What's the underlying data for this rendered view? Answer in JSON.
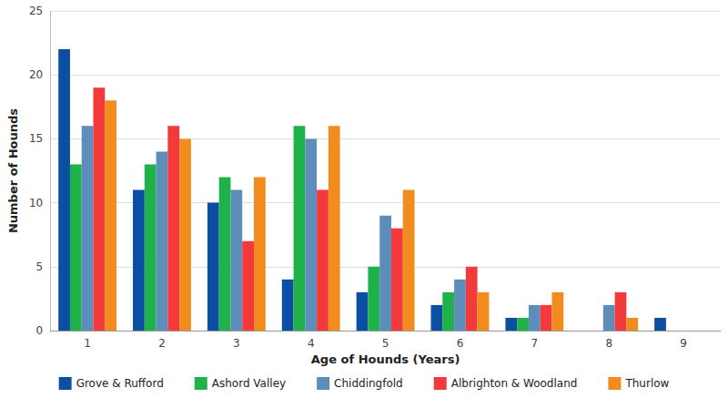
{
  "chart_data": {
    "type": "bar",
    "x_label": "Age of Hounds (Years)",
    "y_label": "Number of Hounds",
    "categories": [
      "1",
      "2",
      "3",
      "4",
      "5",
      "6",
      "7",
      "8",
      "9"
    ],
    "series": [
      {
        "name": "Grove & Rufford",
        "color": "#0b4ea2",
        "values": [
          22,
          11,
          10,
          4,
          3,
          2,
          1,
          0,
          1
        ]
      },
      {
        "name": "Ashord Valley",
        "color": "#1fb24a",
        "values": [
          13,
          13,
          12,
          16,
          5,
          3,
          1,
          0,
          0
        ]
      },
      {
        "name": "Chiddingfold",
        "color": "#5d8dbb",
        "values": [
          16,
          14,
          11,
          15,
          9,
          4,
          2,
          2,
          0
        ]
      },
      {
        "name": "Albrighton & Woodland",
        "color": "#f23a3a",
        "values": [
          19,
          16,
          7,
          11,
          8,
          5,
          2,
          3,
          0
        ]
      },
      {
        "name": "Thurlow",
        "color": "#f28c1e",
        "values": [
          18,
          15,
          12,
          16,
          11,
          3,
          3,
          1,
          0
        ]
      }
    ],
    "ylim": [
      0,
      25
    ],
    "yticks": [
      0,
      5,
      10,
      15,
      20,
      25
    ],
    "grid": true,
    "legend": "bottom"
  }
}
